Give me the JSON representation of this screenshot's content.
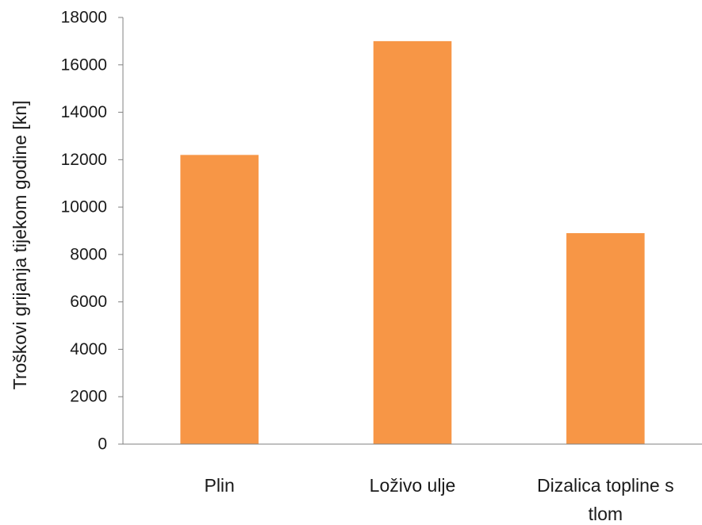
{
  "chart_data": {
    "type": "bar",
    "title": "",
    "xlabel": "",
    "ylabel": "Troškovi grijanja tijekom godine [kn]",
    "categories": [
      "Plin",
      "Loživo ulje",
      "Dizalica topline s tlom"
    ],
    "category_label_lines": [
      [
        "Plin"
      ],
      [
        "Loživo ulje"
      ],
      [
        "Dizalica topline s",
        "tlom"
      ]
    ],
    "values": [
      12200,
      17000,
      8900
    ],
    "ylim": [
      0,
      18000
    ],
    "yticks": [
      0,
      2000,
      4000,
      6000,
      8000,
      10000,
      12000,
      14000,
      16000,
      18000
    ],
    "grid": false,
    "legend": "none",
    "colors": {
      "bar": "#F79646",
      "axis": "#808080",
      "text": "#1a1a1a"
    }
  }
}
